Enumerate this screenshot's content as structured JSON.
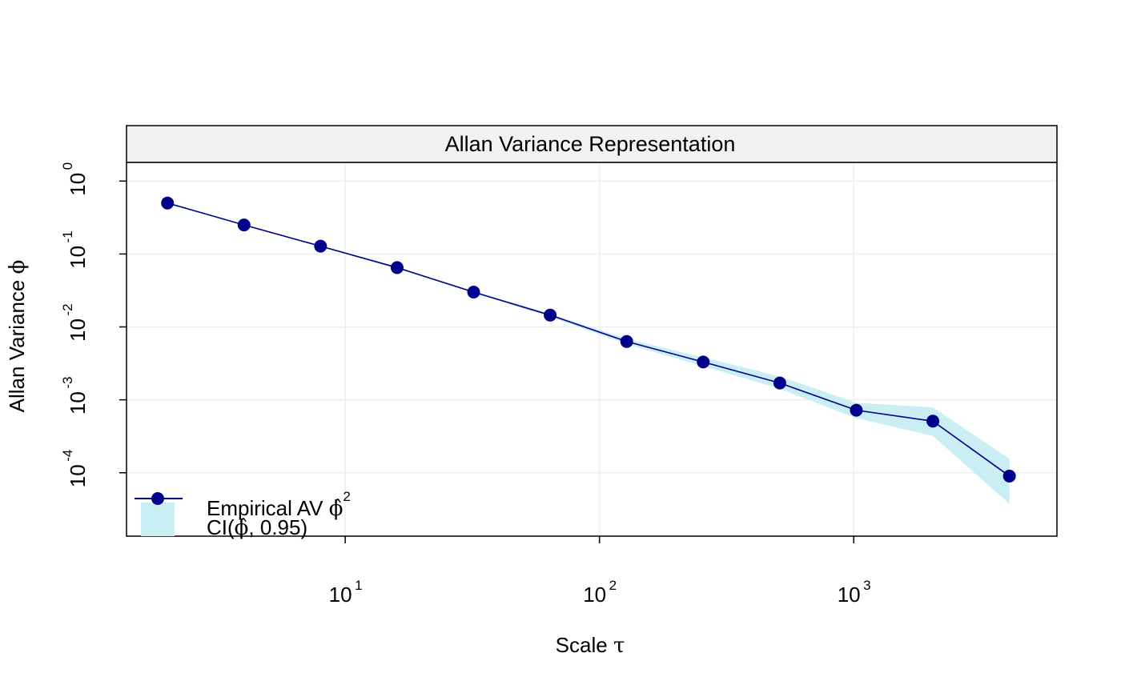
{
  "chart_data": {
    "type": "line",
    "title": "Allan Variance Representation",
    "xlabel": "Scale",
    "xlabel_symbol": "τ",
    "ylabel": "Allan Variance",
    "ylabel_symbol": "ϕ",
    "x_scale": "log10",
    "y_scale": "log10",
    "xlim": [
      1.38,
      6300
    ],
    "ylim": [
      1.35e-05,
      1.8
    ],
    "x_ticks": [
      {
        "value": 10,
        "base": "10",
        "exp": "1"
      },
      {
        "value": 100,
        "base": "10",
        "exp": "2"
      },
      {
        "value": 1000,
        "base": "10",
        "exp": "3"
      }
    ],
    "y_ticks": [
      {
        "value": 1,
        "base": "10",
        "exp": "0"
      },
      {
        "value": 0.1,
        "base": "10",
        "exp": "-1"
      },
      {
        "value": 0.01,
        "base": "10",
        "exp": "-2"
      },
      {
        "value": 0.001,
        "base": "10",
        "exp": "-3"
      },
      {
        "value": 0.0001,
        "base": "10",
        "exp": "-4"
      }
    ],
    "grid": true,
    "legend_position": "bottom-left",
    "series": [
      {
        "name": "Empirical AV",
        "name_symbol": "ϕ̂",
        "name_sup": "2",
        "color": "#00008B",
        "marker": "circle",
        "x": [
          2,
          4,
          8,
          16,
          32,
          64,
          128,
          256,
          512,
          1024,
          2048,
          4096
        ],
        "y": [
          0.5,
          0.25,
          0.128,
          0.065,
          0.03,
          0.0145,
          0.0063,
          0.0033,
          0.0017,
          0.00072,
          0.00051,
          9e-05
        ]
      }
    ],
    "confidence_band": {
      "name": "CI(",
      "name_symbol": "ϕ̂",
      "name_suffix": ", 0.95)",
      "color": "#C9EEF3",
      "x": [
        2,
        4,
        8,
        16,
        32,
        64,
        128,
        256,
        512,
        1024,
        2048,
        4096
      ],
      "lower": [
        0.49,
        0.245,
        0.125,
        0.063,
        0.0291,
        0.0138,
        0.0058,
        0.0029,
        0.00142,
        0.00056,
        0.00032,
        3.75e-05
      ],
      "upper": [
        0.51,
        0.255,
        0.131,
        0.067,
        0.0309,
        0.0152,
        0.0069,
        0.0038,
        0.0021,
        0.00091,
        0.00079,
        0.000155
      ]
    }
  },
  "colors": {
    "line": "#00008B",
    "band": "#C9EEF3",
    "grid": "#EEEEEE",
    "strip": "#F2F2F2"
  }
}
